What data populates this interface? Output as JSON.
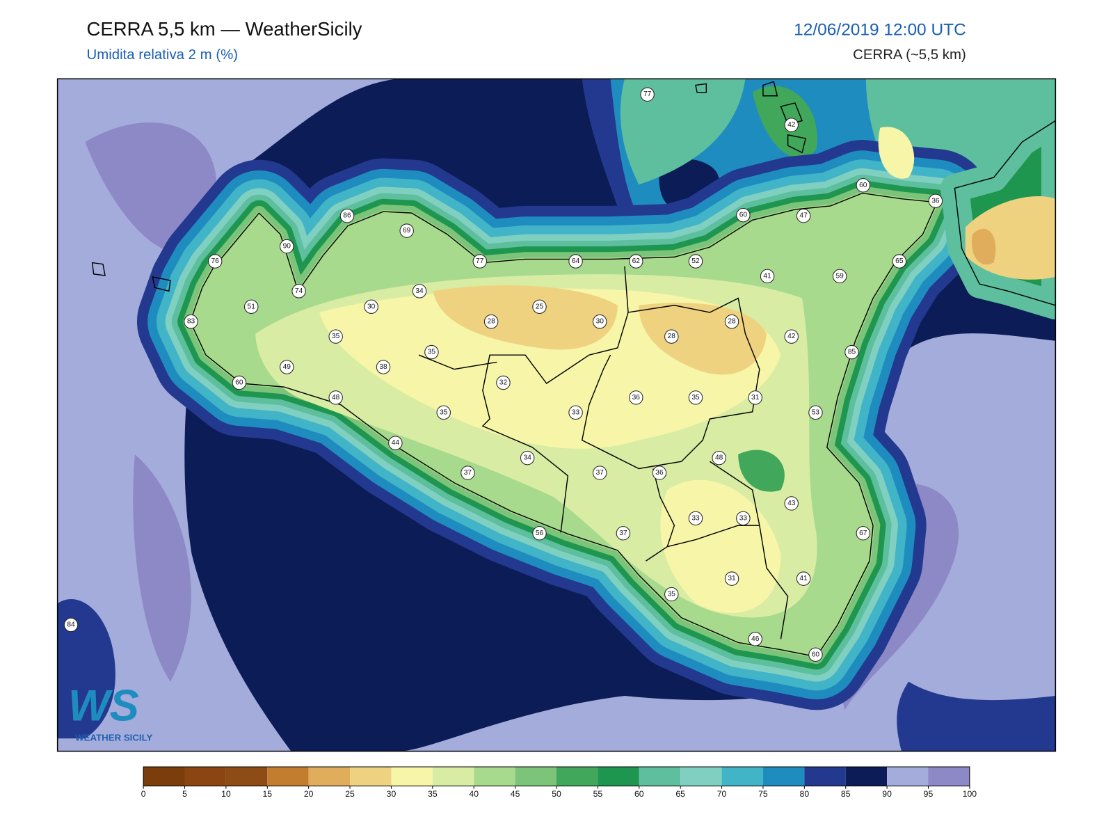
{
  "header": {
    "title": "CERRA 5,5 km — WeatherSicily",
    "subtitle": "Umidita relativa 2 m (%)",
    "datetime": "12/06/2019 12:00 UTC",
    "model": "CERRA (~5,5 km)"
  },
  "stations": [
    77,
    42,
    60,
    36,
    86,
    60,
    47,
    69,
    90,
    76,
    77,
    64,
    62,
    52,
    41,
    59,
    65,
    74,
    34,
    51,
    30,
    25,
    83,
    28,
    30,
    28,
    28,
    42,
    35,
    35,
    85,
    38,
    49,
    32,
    60,
    48,
    36,
    35,
    31,
    35,
    33,
    53,
    44,
    48,
    34,
    37,
    37,
    36,
    43,
    33,
    33,
    37,
    56,
    67,
    31,
    41,
    35,
    84,
    46,
    60
  ],
  "colorbar": {
    "ticks": [
      0,
      5,
      10,
      15,
      20,
      25,
      30,
      35,
      40,
      45,
      50,
      55,
      60,
      65,
      70,
      75,
      80,
      85,
      90,
      95,
      100
    ],
    "colors": [
      "#7a3d0b",
      "#8b4512",
      "#8d4b16",
      "#c27d2f",
      "#e0ad5c",
      "#efd27f",
      "#f6f5a8",
      "#d8eca4",
      "#a8da8e",
      "#7bc47a",
      "#41a75b",
      "#1f9650",
      "#5dbf9e",
      "#80d0c1",
      "#41b4c8",
      "#1f8cc0",
      "#23398f",
      "#0c1c56",
      "#a3acdb",
      "#8d88c6"
    ]
  },
  "logo": {
    "mark": "WS",
    "text": "WEATHER SICILY"
  }
}
